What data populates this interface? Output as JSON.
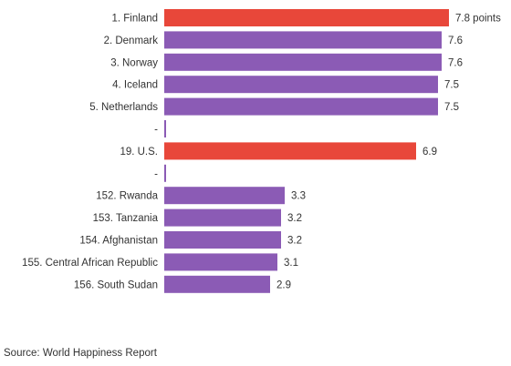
{
  "chart_data": {
    "type": "bar",
    "orientation": "horizontal",
    "title": "",
    "xlabel": "",
    "ylabel": "",
    "value_unit_suffix": " points",
    "xlim": [
      0,
      8
    ],
    "grid": false,
    "rows": [
      {
        "label": "1. Finland",
        "value": 7.8,
        "value_text": "7.8 points",
        "highlight": true
      },
      {
        "label": "2. Denmark",
        "value": 7.6,
        "value_text": "7.6",
        "highlight": false
      },
      {
        "label": "3. Norway",
        "value": 7.6,
        "value_text": "7.6",
        "highlight": false
      },
      {
        "label": "4. Iceland",
        "value": 7.5,
        "value_text": "7.5",
        "highlight": false
      },
      {
        "label": "5. Netherlands",
        "value": 7.5,
        "value_text": "7.5",
        "highlight": false
      },
      {
        "label": "-",
        "value": null,
        "value_text": "",
        "separator": true
      },
      {
        "label": "19. U.S.",
        "value": 6.9,
        "value_text": "6.9",
        "highlight": true
      },
      {
        "label": "-",
        "value": null,
        "value_text": "",
        "separator": true
      },
      {
        "label": "152. Rwanda",
        "value": 3.3,
        "value_text": "3.3",
        "highlight": false
      },
      {
        "label": "153. Tanzania",
        "value": 3.2,
        "value_text": "3.2",
        "highlight": false
      },
      {
        "label": "154. Afghanistan",
        "value": 3.2,
        "value_text": "3.2",
        "highlight": false
      },
      {
        "label": "155. Central African Republic",
        "value": 3.1,
        "value_text": "3.1",
        "highlight": false
      },
      {
        "label": "156. South Sudan",
        "value": 2.9,
        "value_text": "2.9",
        "highlight": false
      }
    ],
    "colors": {
      "highlight": "#e8473a",
      "normal": "#8b5bb5",
      "separator": "#8b5bb5"
    }
  },
  "source_text": "Source: World Happiness Report"
}
